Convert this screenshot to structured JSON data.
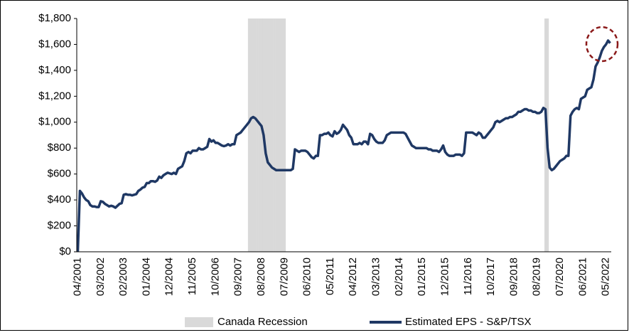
{
  "chart_data": {
    "type": "line",
    "categories": [
      "04/2001",
      null,
      null,
      null,
      null,
      null,
      null,
      null,
      null,
      null,
      null,
      "03/2002",
      null,
      null,
      null,
      null,
      null,
      null,
      null,
      null,
      null,
      null,
      "02/2003",
      null,
      null,
      null,
      null,
      null,
      null,
      null,
      null,
      null,
      null,
      "01/2004",
      null,
      null,
      null,
      null,
      null,
      null,
      null,
      null,
      null,
      null,
      "12/2004",
      null,
      null,
      null,
      null,
      null,
      null,
      null,
      null,
      null,
      null,
      "11/2005",
      null,
      null,
      null,
      null,
      null,
      null,
      null,
      null,
      null,
      null,
      "10/2006",
      null,
      null,
      null,
      null,
      null,
      null,
      null,
      null,
      null,
      null,
      "09/2007",
      null,
      null,
      null,
      null,
      null,
      null,
      null,
      null,
      null,
      null,
      "08/2008",
      null,
      null,
      null,
      null,
      null,
      null,
      null,
      null,
      null,
      null,
      "07/2009",
      null,
      null,
      null,
      null,
      null,
      null,
      null,
      null,
      null,
      null,
      "06/2010",
      null,
      null,
      null,
      null,
      null,
      null,
      null,
      null,
      null,
      null,
      "05/2011",
      null,
      null,
      null,
      null,
      null,
      null,
      null,
      null,
      null,
      null,
      "04/2012",
      null,
      null,
      null,
      null,
      null,
      null,
      null,
      null,
      null,
      null,
      "03/2013",
      null,
      null,
      null,
      null,
      null,
      null,
      null,
      null,
      null,
      null,
      "02/2014",
      null,
      null,
      null,
      null,
      null,
      null,
      null,
      null,
      null,
      null,
      "01/2015",
      null,
      null,
      null,
      null,
      null,
      null,
      null,
      null,
      null,
      null,
      "12/2015",
      null,
      null,
      null,
      null,
      null,
      null,
      null,
      null,
      null,
      null,
      "11/2016",
      null,
      null,
      null,
      null,
      null,
      null,
      null,
      null,
      null,
      null,
      "10/2017",
      null,
      null,
      null,
      null,
      null,
      null,
      null,
      null,
      null,
      null,
      "09/2018",
      null,
      null,
      null,
      null,
      null,
      null,
      null,
      null,
      null,
      null,
      "08/2019",
      null,
      null,
      null,
      null,
      null,
      null,
      null,
      null,
      null,
      null,
      "07/2020",
      null,
      null,
      null,
      null,
      null,
      null,
      null,
      null,
      null,
      null,
      "06/2021",
      null,
      null,
      null,
      null,
      null,
      null,
      null,
      null,
      null,
      null,
      "05/2022",
      null,
      null
    ],
    "series": [
      {
        "name": "Canada Recession",
        "type": "bar",
        "color": "#d9d9d9",
        "values": [
          null,
          null,
          null,
          null,
          null,
          null,
          null,
          null,
          null,
          null,
          null,
          null,
          null,
          null,
          null,
          null,
          null,
          null,
          null,
          null,
          null,
          null,
          null,
          null,
          null,
          null,
          null,
          null,
          null,
          null,
          null,
          null,
          null,
          null,
          null,
          null,
          null,
          null,
          null,
          null,
          null,
          null,
          null,
          null,
          null,
          null,
          null,
          null,
          null,
          null,
          null,
          null,
          null,
          null,
          null,
          null,
          null,
          null,
          null,
          null,
          null,
          null,
          null,
          null,
          null,
          null,
          null,
          null,
          null,
          null,
          null,
          null,
          null,
          null,
          null,
          null,
          null,
          null,
          null,
          null,
          null,
          null,
          1800,
          1800,
          1800,
          1800,
          1800,
          1800,
          1800,
          1800,
          1800,
          1800,
          1800,
          1800,
          1800,
          1800,
          1800,
          1800,
          1800,
          1800,
          null,
          null,
          null,
          null,
          null,
          null,
          null,
          null,
          null,
          null,
          null,
          null,
          null,
          null,
          null,
          null,
          null,
          null,
          null,
          null,
          null,
          null,
          null,
          null,
          null,
          null,
          null,
          null,
          null,
          null,
          null,
          null,
          null,
          null,
          null,
          null,
          null,
          null,
          null,
          null,
          null,
          null,
          null,
          null,
          null,
          null,
          null,
          null,
          null,
          null,
          null,
          null,
          null,
          null,
          null,
          null,
          null,
          null,
          null,
          null,
          null,
          null,
          null,
          null,
          null,
          null,
          null,
          null,
          null,
          null,
          null,
          null,
          null,
          null,
          null,
          null,
          null,
          null,
          null,
          null,
          null,
          null,
          null,
          null,
          null,
          null,
          null,
          null,
          null,
          null,
          null,
          null,
          null,
          null,
          null,
          null,
          null,
          null,
          null,
          null,
          null,
          null,
          null,
          null,
          null,
          null,
          null,
          null,
          null,
          null,
          null,
          null,
          null,
          null,
          null,
          null,
          null,
          null,
          null,
          null,
          null,
          null,
          null,
          null,
          1800,
          1800,
          null,
          null,
          null,
          null,
          null,
          null,
          null,
          null,
          null,
          null,
          null,
          null,
          null,
          null,
          null,
          null,
          null,
          null,
          null,
          null,
          null,
          null,
          null,
          null,
          null,
          null,
          null,
          null,
          null,
          null
        ]
      },
      {
        "name": "Estimated EPS - S&P/TSX",
        "type": "line",
        "color": "#1f3864",
        "values": [
          0,
          470,
          450,
          420,
          400,
          390,
          360,
          350,
          350,
          345,
          345,
          390,
          385,
          370,
          360,
          350,
          355,
          350,
          340,
          355,
          370,
          375,
          440,
          445,
          440,
          440,
          435,
          440,
          445,
          470,
          480,
          495,
          500,
          530,
          530,
          545,
          545,
          540,
          550,
          580,
          570,
          590,
          600,
          610,
          605,
          600,
          610,
          600,
          640,
          650,
          660,
          700,
          760,
          770,
          760,
          780,
          780,
          780,
          800,
          790,
          790,
          800,
          810,
          870,
          850,
          860,
          840,
          840,
          830,
          820,
          815,
          820,
          830,
          820,
          830,
          830,
          900,
          910,
          920,
          940,
          960,
          980,
          1000,
          1030,
          1040,
          1030,
          1010,
          990,
          970,
          900,
          760,
          690,
          670,
          650,
          640,
          630,
          630,
          630,
          630,
          630,
          630,
          630,
          630,
          640,
          790,
          780,
          770,
          780,
          780,
          780,
          770,
          750,
          730,
          720,
          740,
          740,
          900,
          900,
          910,
          910,
          920,
          900,
          890,
          930,
          910,
          920,
          940,
          980,
          960,
          940,
          900,
          880,
          830,
          830,
          830,
          840,
          830,
          850,
          850,
          830,
          910,
          900,
          870,
          850,
          840,
          840,
          840,
          860,
          900,
          910,
          920,
          920,
          920,
          920,
          920,
          920,
          920,
          910,
          880,
          850,
          820,
          810,
          800,
          800,
          800,
          800,
          800,
          800,
          790,
          790,
          780,
          780,
          780,
          770,
          790,
          820,
          770,
          750,
          740,
          740,
          740,
          750,
          750,
          750,
          740,
          760,
          920,
          920,
          920,
          920,
          910,
          900,
          920,
          910,
          880,
          880,
          900,
          920,
          940,
          960,
          1000,
          1010,
          1000,
          1010,
          1020,
          1030,
          1030,
          1040,
          1040,
          1050,
          1060,
          1080,
          1080,
          1090,
          1100,
          1100,
          1090,
          1090,
          1080,
          1080,
          1070,
          1070,
          1080,
          1110,
          1100,
          800,
          650,
          630,
          640,
          660,
          680,
          700,
          710,
          720,
          740,
          740,
          1050,
          1080,
          1100,
          1110,
          1100,
          1180,
          1190,
          1200,
          1250,
          1260,
          1270,
          1330,
          1430,
          1460,
          1500,
          1550,
          1580,
          1600,
          1630,
          1610
        ]
      }
    ],
    "ylim": [
      0,
      1800
    ],
    "yticks": [
      {
        "value": 0,
        "label": "$0"
      },
      {
        "value": 200,
        "label": "$200"
      },
      {
        "value": 400,
        "label": "$400"
      },
      {
        "value": 600,
        "label": "$600"
      },
      {
        "value": 800,
        "label": "$800"
      },
      {
        "value": 1000,
        "label": "$1,000"
      },
      {
        "value": 1200,
        "label": "$1,200"
      },
      {
        "value": 1400,
        "label": "$1,400"
      },
      {
        "value": 1600,
        "label": "$1,600"
      },
      {
        "value": 1800,
        "label": "$1,800"
      }
    ],
    "grid": false
  }
}
